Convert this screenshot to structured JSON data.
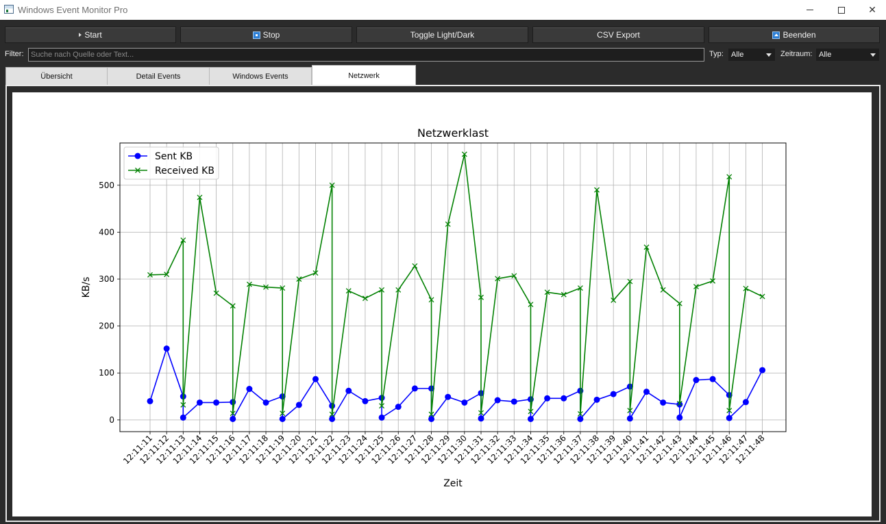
{
  "window": {
    "title": "Windows Event Monitor Pro"
  },
  "toolbar": {
    "start_label": "Start",
    "stop_label": "Stop",
    "toggle_label": "Toggle Light/Dark",
    "csv_label": "CSV Export",
    "exit_label": "Beenden"
  },
  "filter": {
    "label": "Filter:",
    "placeholder": "Suche nach Quelle oder Text...",
    "type_label": "Typ:",
    "type_value": "Alle",
    "range_label": "Zeitraum:",
    "range_value": "Alle"
  },
  "tabs": [
    {
      "label": "Übersicht",
      "active": false
    },
    {
      "label": "Detail Events",
      "active": false
    },
    {
      "label": "Windows Events",
      "active": false
    },
    {
      "label": "Netzwerk",
      "active": true
    }
  ],
  "chart_data": {
    "type": "line",
    "title": "Netzwerklast",
    "xlabel": "Zeit",
    "ylabel": "KB/s",
    "ylim": [
      -25,
      590
    ],
    "yticks": [
      0,
      100,
      200,
      300,
      400,
      500
    ],
    "grid": true,
    "legend": "top-left",
    "x": [
      "12:11:11",
      "12:11:12",
      "12:11:13",
      "12:11:13",
      "12:11:14",
      "12:11:15",
      "12:11:16",
      "12:11:16",
      "12:11:17",
      "12:11:18",
      "12:11:19",
      "12:11:19",
      "12:11:20",
      "12:11:21",
      "12:11:22",
      "12:11:22",
      "12:11:23",
      "12:11:24",
      "12:11:25",
      "12:11:25",
      "12:11:26",
      "12:11:27",
      "12:11:28",
      "12:11:28",
      "12:11:29",
      "12:11:30",
      "12:11:31",
      "12:11:31",
      "12:11:32",
      "12:11:33",
      "12:11:34",
      "12:11:34",
      "12:11:35",
      "12:11:36",
      "12:11:37",
      "12:11:37",
      "12:11:38",
      "12:11:39",
      "12:11:40",
      "12:11:40",
      "12:11:41",
      "12:11:42",
      "12:11:43",
      "12:11:43",
      "12:11:44",
      "12:11:45",
      "12:11:46",
      "12:11:46",
      "12:11:47",
      "12:11:48"
    ],
    "x_ticks": [
      "12:11:11",
      "12:11:12",
      "12:11:13",
      "12:11:14",
      "12:11:15",
      "12:11:16",
      "12:11:17",
      "12:11:18",
      "12:11:19",
      "12:11:20",
      "12:11:21",
      "12:11:22",
      "12:11:23",
      "12:11:24",
      "12:11:25",
      "12:11:26",
      "12:11:27",
      "12:11:28",
      "12:11:29",
      "12:11:30",
      "12:11:31",
      "12:11:32",
      "12:11:33",
      "12:11:34",
      "12:11:35",
      "12:11:36",
      "12:11:37",
      "12:11:38",
      "12:11:39",
      "12:11:40",
      "12:11:41",
      "12:11:42",
      "12:11:43",
      "12:11:44",
      "12:11:45",
      "12:11:46",
      "12:11:47",
      "12:11:48"
    ],
    "series": [
      {
        "name": "Sent KB",
        "color": "#0000ff",
        "marker": "circle",
        "values": [
          40,
          152,
          50,
          5,
          37,
          37,
          38,
          2,
          66,
          37,
          50,
          2,
          32,
          87,
          30,
          2,
          62,
          40,
          47,
          5,
          28,
          67,
          67,
          2,
          49,
          37,
          57,
          3,
          42,
          39,
          44,
          2,
          46,
          46,
          62,
          2,
          43,
          55,
          71,
          3,
          60,
          37,
          33,
          5,
          85,
          87,
          53,
          4,
          38,
          106
        ]
      },
      {
        "name": "Received KB",
        "color": "#008000",
        "marker": "x",
        "values": [
          309,
          310,
          383,
          32,
          474,
          270,
          243,
          14,
          289,
          283,
          281,
          14,
          300,
          313,
          500,
          12,
          275,
          259,
          277,
          30,
          277,
          328,
          256,
          12,
          417,
          566,
          261,
          15,
          301,
          307,
          246,
          18,
          272,
          267,
          281,
          13,
          490,
          255,
          295,
          20,
          368,
          277,
          248,
          35,
          284,
          296,
          518,
          20,
          280,
          263
        ]
      }
    ]
  }
}
